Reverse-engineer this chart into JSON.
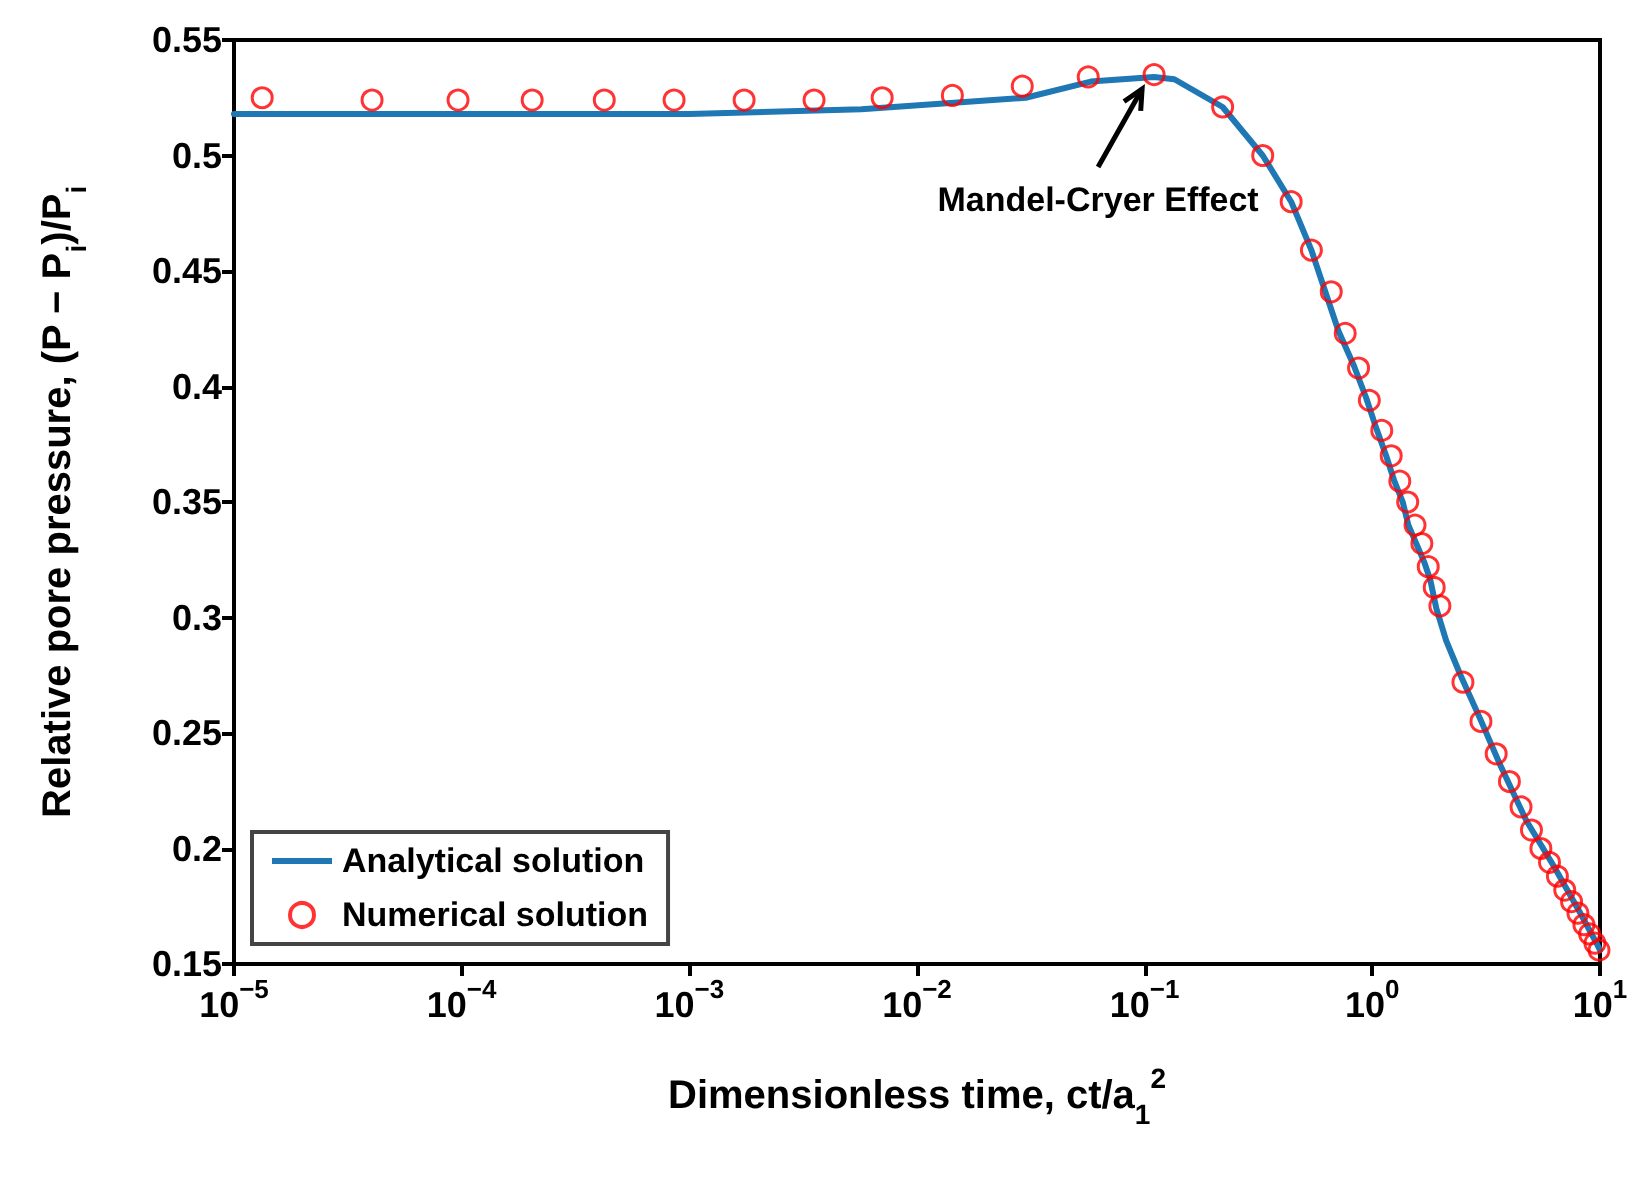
{
  "chart_data": {
    "type": "line",
    "xlabel": "Dimensionless time, ct/a$_{1}$$^{2}$",
    "ylabel": "Relative pore pressure, (P − P$_{i}$)/P$_{i}$",
    "log": "x",
    "xlim": [
      1e-05,
      10
    ],
    "ylim": [
      0.15,
      0.55
    ],
    "xticks": [
      {
        "value": 1e-05,
        "label": "10$^{−5}$"
      },
      {
        "value": 0.0001,
        "label": "10$^{−4}$"
      },
      {
        "value": 0.001,
        "label": "10$^{−3}$"
      },
      {
        "value": 0.01,
        "label": "10$^{−2}$"
      },
      {
        "value": 0.1,
        "label": "10$^{−1}$"
      },
      {
        "value": 1,
        "label": "10$^{0}$"
      },
      {
        "value": 10,
        "label": "10$^{1}$"
      }
    ],
    "yticks": [
      0.15,
      0.2,
      0.25,
      0.3,
      0.35,
      0.4,
      0.45,
      0.5,
      0.55
    ],
    "grid": false,
    "legend": "bottom left",
    "series": [
      {
        "name": "Analytical solution",
        "type": "line",
        "marker": "none",
        "line_style": "solid",
        "color": "#1f77b4",
        "x": [
          1e-05,
          0.0001,
          0.001,
          0.0057,
          0.03,
          0.058,
          0.11,
          0.135,
          0.22,
          0.33,
          0.44,
          0.54,
          0.71,
          0.83,
          0.94,
          1.04,
          1.15,
          1.25,
          1.36,
          1.44,
          1.56,
          1.69,
          1.8,
          1.91,
          2.11,
          2.44,
          2.98,
          3.65,
          4.75,
          6.3,
          8.2,
          9.66,
          10
        ],
        "values": [
          0.518,
          0.518,
          0.518,
          0.52,
          0.525,
          0.532,
          0.534,
          0.533,
          0.521,
          0.5,
          0.48,
          0.459,
          0.424,
          0.409,
          0.395,
          0.382,
          0.37,
          0.359,
          0.35,
          0.34,
          0.332,
          0.324,
          0.316,
          0.304,
          0.29,
          0.275,
          0.256,
          0.236,
          0.212,
          0.192,
          0.172,
          0.159,
          0.156
        ]
      },
      {
        "name": "Numerical solution",
        "type": "scatter",
        "marker": "circle",
        "color": "#ff0000",
        "x": [
          1.33e-05,
          4.04e-05,
          9.64e-05,
          0.000204,
          0.000423,
          0.000857,
          0.00174,
          0.00353,
          0.00703,
          0.0143,
          0.029,
          0.0565,
          0.11,
          0.22,
          0.33,
          0.44,
          0.54,
          0.66,
          0.76,
          0.87,
          0.97,
          1.1,
          1.21,
          1.32,
          1.43,
          1.54,
          1.65,
          1.76,
          1.87,
          1.98,
          2.5,
          3.0,
          3.5,
          4.0,
          4.5,
          5.0,
          5.5,
          6.0,
          6.5,
          7.0,
          7.5,
          8.0,
          8.5,
          9.0,
          9.5,
          9.9
        ],
        "values": [
          0.525,
          0.524,
          0.524,
          0.524,
          0.524,
          0.524,
          0.524,
          0.524,
          0.525,
          0.526,
          0.53,
          0.534,
          0.535,
          0.521,
          0.5,
          0.48,
          0.459,
          0.441,
          0.423,
          0.408,
          0.394,
          0.381,
          0.37,
          0.359,
          0.35,
          0.34,
          0.332,
          0.322,
          0.313,
          0.305,
          0.272,
          0.255,
          0.241,
          0.229,
          0.218,
          0.208,
          0.2,
          0.194,
          0.188,
          0.182,
          0.177,
          0.172,
          0.167,
          0.163,
          0.159,
          0.156
        ]
      }
    ],
    "annotations": [
      {
        "text": "Mandel-Cryer Effect",
        "x": 0.11,
        "y": 0.534
      }
    ]
  }
}
